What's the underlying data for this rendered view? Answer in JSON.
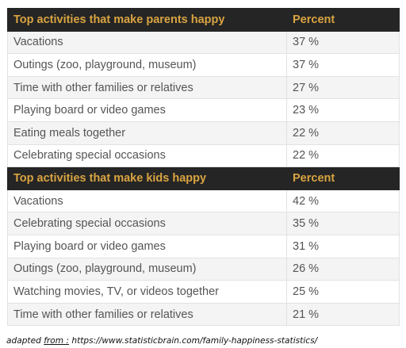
{
  "chart_data": [
    {
      "type": "table",
      "title": "",
      "columns": [
        "Top activities that make parents happy",
        "Percent"
      ],
      "rows": [
        [
          "Vacations",
          "37 %"
        ],
        [
          "Outings (zoo, playground, museum)",
          "37 %"
        ],
        [
          "Time with other families or relatives",
          "27 %"
        ],
        [
          "Playing board or video games",
          "23 %"
        ],
        [
          "Eating meals together",
          "22 %"
        ],
        [
          "Celebrating special occasions",
          "22 %"
        ]
      ]
    },
    {
      "type": "table",
      "title": "",
      "columns": [
        "Top activities that make kids happy",
        "Percent"
      ],
      "rows": [
        [
          "Vacations",
          "42 %"
        ],
        [
          "Celebrating special occasions",
          "35 %"
        ],
        [
          "Playing board or video games",
          "31 %"
        ],
        [
          "Outings (zoo, playground, museum)",
          "26 %"
        ],
        [
          "Watching movies, TV, or videos together",
          "25 %"
        ],
        [
          "Time with other families or relatives",
          "21 %"
        ]
      ]
    }
  ],
  "source": {
    "prefix": "adapted ",
    "from_label": "from :",
    "url": " https://www.statisticbrain.com/family-happiness-statistics/"
  },
  "colors": {
    "header_bg": "#252525",
    "header_text": "#d9a441",
    "row_alt": "#f4f4f4",
    "row_plain": "#ffffff",
    "body_text": "#555555"
  }
}
